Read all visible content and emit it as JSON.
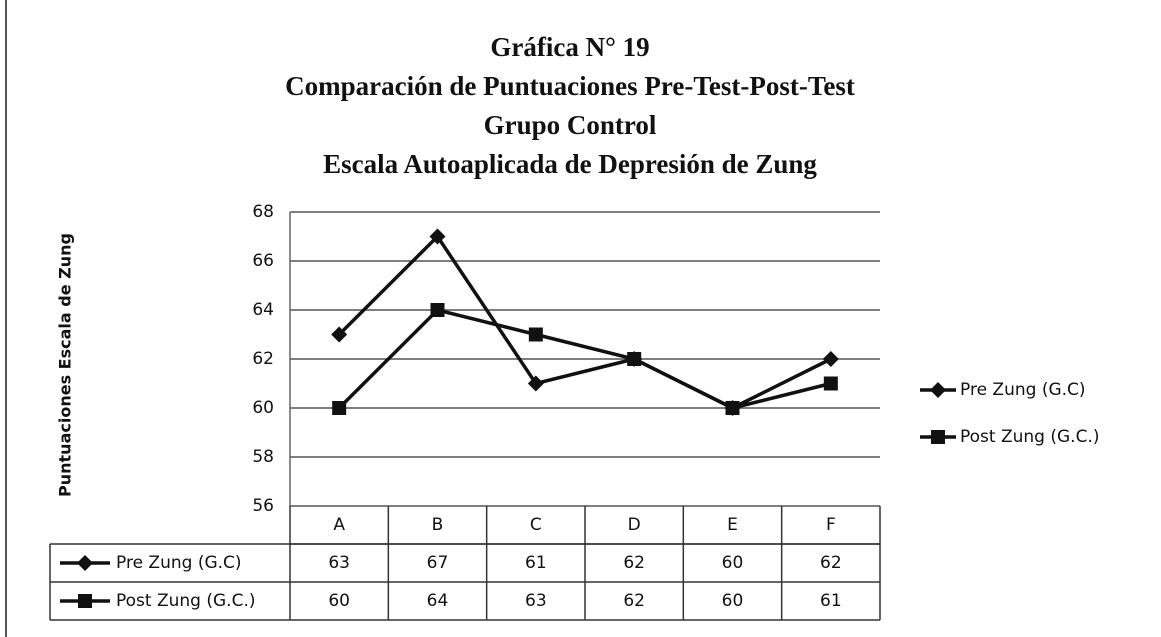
{
  "chart_data": {
    "type": "line",
    "title": [
      "Gráfica N° 19",
      "Comparación de  Puntuaciones Pre-Test-Post-Test",
      "Grupo Control",
      "Escala Autoaplicada de Depresión de Zung"
    ],
    "ylabel": "Puntuaciones Escala de Zung",
    "categories": [
      "A",
      "B",
      "C",
      "D",
      "E",
      "F"
    ],
    "series": [
      {
        "name": "Pre Zung (G.C)",
        "color": "#111111",
        "marker": "diamond",
        "values": [
          63,
          67,
          61,
          62,
          60,
          62
        ]
      },
      {
        "name": "Post Zung (G.C.)",
        "color": "#111111",
        "marker": "square",
        "values": [
          60,
          64,
          63,
          62,
          60,
          61
        ]
      }
    ],
    "ylim": [
      56,
      68
    ],
    "yticks": [
      56,
      58,
      60,
      62,
      64,
      66,
      68
    ],
    "grid": true,
    "legend": "right",
    "data_table": true
  }
}
